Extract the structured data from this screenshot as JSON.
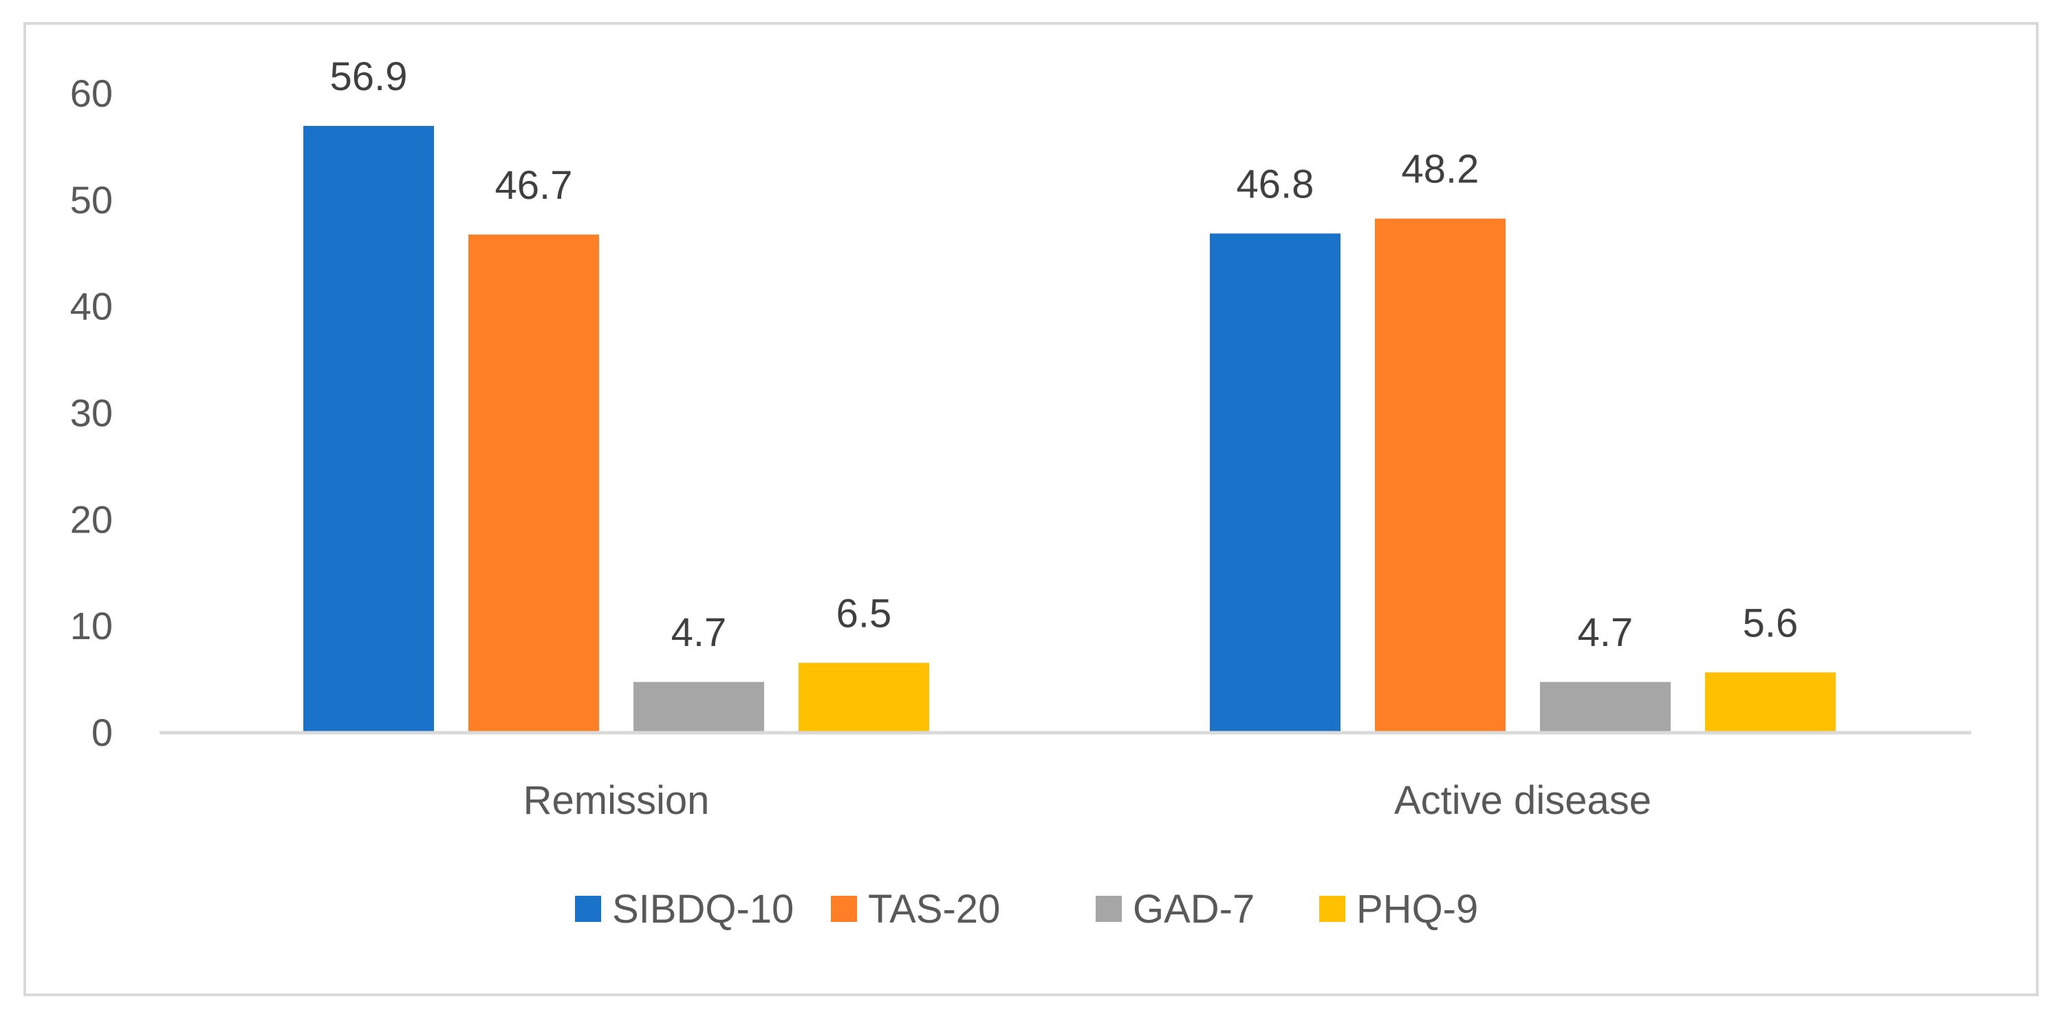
{
  "chart_data": {
    "type": "bar",
    "title": "",
    "xlabel": "",
    "ylabel": "",
    "categories": [
      "Remission",
      "Active disease"
    ],
    "series": [
      {
        "name": "SIBDQ-10",
        "color": "#1A73C8",
        "values": [
          56.9,
          46.8
        ]
      },
      {
        "name": "TAS-20",
        "color": "#FF7F27",
        "values": [
          46.7,
          48.2
        ]
      },
      {
        "name": "GAD-7",
        "color": "#A6A6A6",
        "values": [
          4.7,
          4.7
        ]
      },
      {
        "name": "PHQ-9",
        "color": "#FFC000",
        "values": [
          6.5,
          5.6
        ]
      }
    ],
    "data_labels": [
      [
        "56.9",
        "46.8"
      ],
      [
        "46.7",
        "48.2"
      ],
      [
        "4.7",
        "4.7"
      ],
      [
        "6.5",
        "5.6"
      ]
    ],
    "ylim": [
      0,
      60
    ],
    "yticks": [
      0,
      10,
      20,
      30,
      40,
      50,
      60
    ],
    "ytick_labels": [
      "0",
      "10",
      "20",
      "30",
      "40",
      "50",
      "60"
    ],
    "grid": false,
    "legend_position": "bottom"
  },
  "colors": {
    "axis": "#D9D9D9",
    "frame": "#D9D9D9",
    "text": "#595959"
  }
}
